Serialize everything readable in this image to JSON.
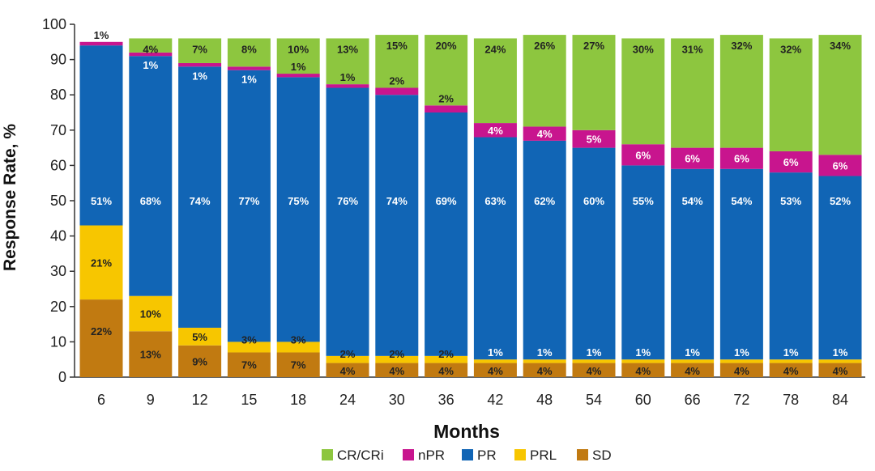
{
  "chart_data": {
    "type": "bar",
    "stacked": true,
    "xlabel": "Months",
    "ylabel": "Response Rate, %",
    "ylim": [
      0,
      100
    ],
    "yticks": [
      0,
      10,
      20,
      30,
      40,
      50,
      60,
      70,
      80,
      90,
      100
    ],
    "categories": [
      "6",
      "9",
      "12",
      "15",
      "18",
      "24",
      "30",
      "36",
      "42",
      "48",
      "54",
      "60",
      "66",
      "72",
      "78",
      "84"
    ],
    "series": [
      {
        "name": "SD",
        "color": "#C17A11",
        "label_color": "#222222",
        "values": [
          22,
          13,
          9,
          7,
          7,
          4,
          4,
          4,
          4,
          4,
          4,
          4,
          4,
          4,
          4,
          4
        ],
        "labels": [
          "22%",
          "13%",
          "9%",
          "7%",
          "7%",
          "4%",
          "4%",
          "4%",
          "4%",
          "4%",
          "4%",
          "4%",
          "4%",
          "4%",
          "4%",
          "4%"
        ]
      },
      {
        "name": "PRL",
        "color": "#F7C600",
        "label_color": "#222222",
        "values": [
          21,
          10,
          5,
          3,
          3,
          2,
          2,
          2,
          1,
          1,
          1,
          1,
          1,
          1,
          1,
          1
        ],
        "labels": [
          "21%",
          "10%",
          "5%",
          "3%",
          "3%",
          "2%",
          "2%",
          "2%",
          "1%",
          "1%",
          "1%",
          "1%",
          "1%",
          "1%",
          "1%",
          "1%"
        ]
      },
      {
        "name": "PR",
        "color": "#1165B5",
        "label_color": "#ffffff",
        "values": [
          51,
          68,
          74,
          77,
          75,
          76,
          74,
          69,
          63,
          62,
          60,
          55,
          54,
          54,
          53,
          52
        ],
        "labels": [
          "51%",
          "68%",
          "74%",
          "77%",
          "75%",
          "76%",
          "74%",
          "69%",
          "63%",
          "62%",
          "60%",
          "55%",
          "54%",
          "54%",
          "53%",
          "52%"
        ]
      },
      {
        "name": "nPR",
        "color": "#C8158E",
        "label_color": "#ffffff",
        "values": [
          1,
          1,
          1,
          1,
          1,
          1,
          2,
          2,
          4,
          4,
          5,
          6,
          6,
          6,
          6,
          6
        ],
        "labels": [
          "1%",
          "1%",
          "1%",
          "1%",
          "1%",
          "1%",
          "2%",
          "2%",
          "4%",
          "4%",
          "5%",
          "6%",
          "6%",
          "6%",
          "6%",
          "6%"
        ]
      },
      {
        "name": "CR/CRi",
        "color": "#8DC63F",
        "label_color": "#222222",
        "values": [
          0,
          4,
          7,
          8,
          10,
          13,
          15,
          20,
          24,
          26,
          27,
          30,
          31,
          32,
          32,
          34
        ],
        "labels": [
          "",
          "4%",
          "7%",
          "8%",
          "10%",
          "13%",
          "15%",
          "20%",
          "24%",
          "26%",
          "27%",
          "30%",
          "31%",
          "32%",
          "32%",
          "34%"
        ]
      }
    ],
    "legend": {
      "position": "bottom",
      "order": [
        "CR/CRi",
        "nPR",
        "PR",
        "PRL",
        "SD"
      ]
    },
    "grid": false
  }
}
